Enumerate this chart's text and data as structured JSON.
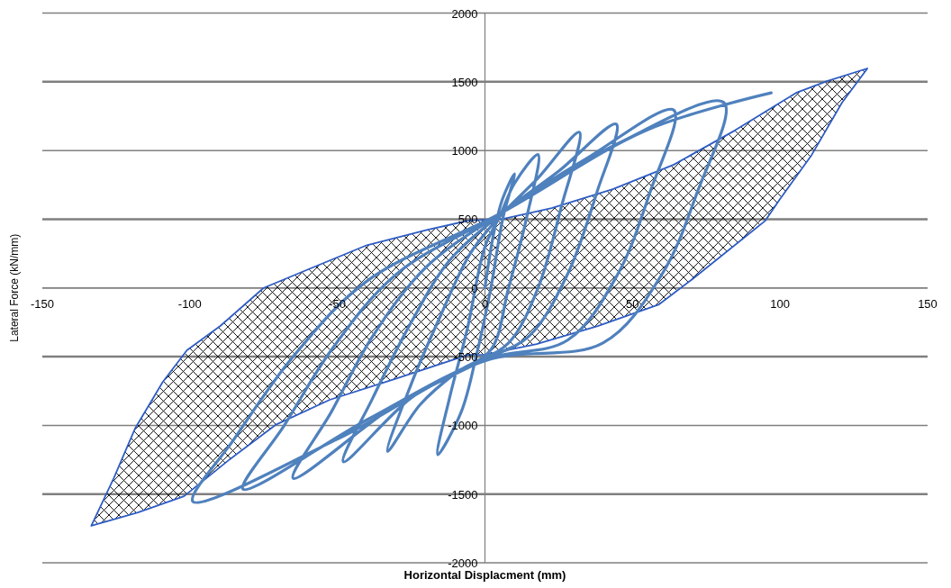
{
  "chart_data": {
    "type": "line",
    "xlabel": "Horizontal Displacment (mm)",
    "ylabel": "Lateral Force (kN/mm)",
    "xlim": [
      -150,
      150
    ],
    "xticks": [
      -150,
      -100,
      -50,
      0,
      50,
      100,
      150
    ],
    "ylim": [
      -2000,
      2000
    ],
    "yticks": [
      -2000,
      -1500,
      -1000,
      -500,
      0,
      500,
      1000,
      1500,
      2000
    ],
    "grid": "y",
    "marker": "none",
    "line_style": "solid",
    "series": [
      {
        "color": "#4f81bd",
        "x": [
          0,
          3,
          6,
          10,
          6,
          2,
          -3,
          -8,
          -16,
          -12,
          -6,
          0,
          5,
          10,
          18,
          14,
          8,
          2,
          -10,
          -22,
          -33,
          -25,
          -15,
          -5,
          5,
          18,
          32,
          26,
          18,
          8,
          -5,
          -25,
          -48,
          -38,
          -25,
          -12,
          5,
          25,
          44.5,
          38,
          28,
          15,
          0,
          -30,
          -65,
          -52,
          -38,
          -20,
          5,
          35,
          64,
          56,
          45,
          28,
          0,
          -40,
          -82,
          -68,
          -52,
          -30,
          5,
          45,
          81,
          72,
          60,
          40,
          0,
          -50,
          -99,
          -85,
          -65,
          -40,
          5,
          55,
          97
        ],
        "values": [
          0,
          400,
          650,
          830,
          500,
          0,
          -500,
          -900,
          -1213,
          -800,
          -300,
          300,
          520,
          760,
          970,
          500,
          0,
          -450,
          -620,
          -850,
          -1189,
          -700,
          -200,
          250,
          520,
          800,
          1133,
          600,
          0,
          -400,
          -560,
          -800,
          -1265,
          -800,
          -250,
          200,
          530,
          850,
          1192,
          700,
          100,
          -350,
          -520,
          -850,
          -1385,
          -900,
          -350,
          150,
          540,
          950,
          1294,
          700,
          100,
          -380,
          -520,
          -960,
          -1464,
          -1000,
          -450,
          100,
          540,
          1050,
          1348,
          700,
          100,
          -400,
          -530,
          -1100,
          -1554,
          -1100,
          -500,
          50,
          540,
          1150,
          1419
        ]
      },
      {
        "type": "area",
        "color": "#2e5cc4",
        "x": [
          -133.4,
          -125.8,
          -118.6,
          -109.2,
          -101,
          -89.7,
          -75,
          -60.7,
          -40,
          -19.4,
          -5.8,
          6.1,
          22.6,
          43.3,
          64,
          84.7,
          105.4,
          115.9,
          129.6,
          121,
          110.7,
          100,
          95,
          70.3,
          59,
          38.2,
          17.5,
          0,
          -5.8,
          -29.8,
          -52.6,
          -71,
          -86.4,
          -102,
          -117.6,
          -133.4
        ],
        "values": [
          -1731,
          -1385,
          -1024,
          -685,
          -454,
          -277,
          0,
          128,
          311,
          423,
          489,
          502,
          580,
          718,
          897,
          1146,
          1419,
          1505,
          1597,
          1348,
          967,
          647,
          489,
          64,
          -120,
          -277,
          -409,
          -486,
          -487,
          -657,
          -814,
          -997,
          -1246,
          -1516,
          -1634,
          -1731
        ]
      }
    ]
  }
}
